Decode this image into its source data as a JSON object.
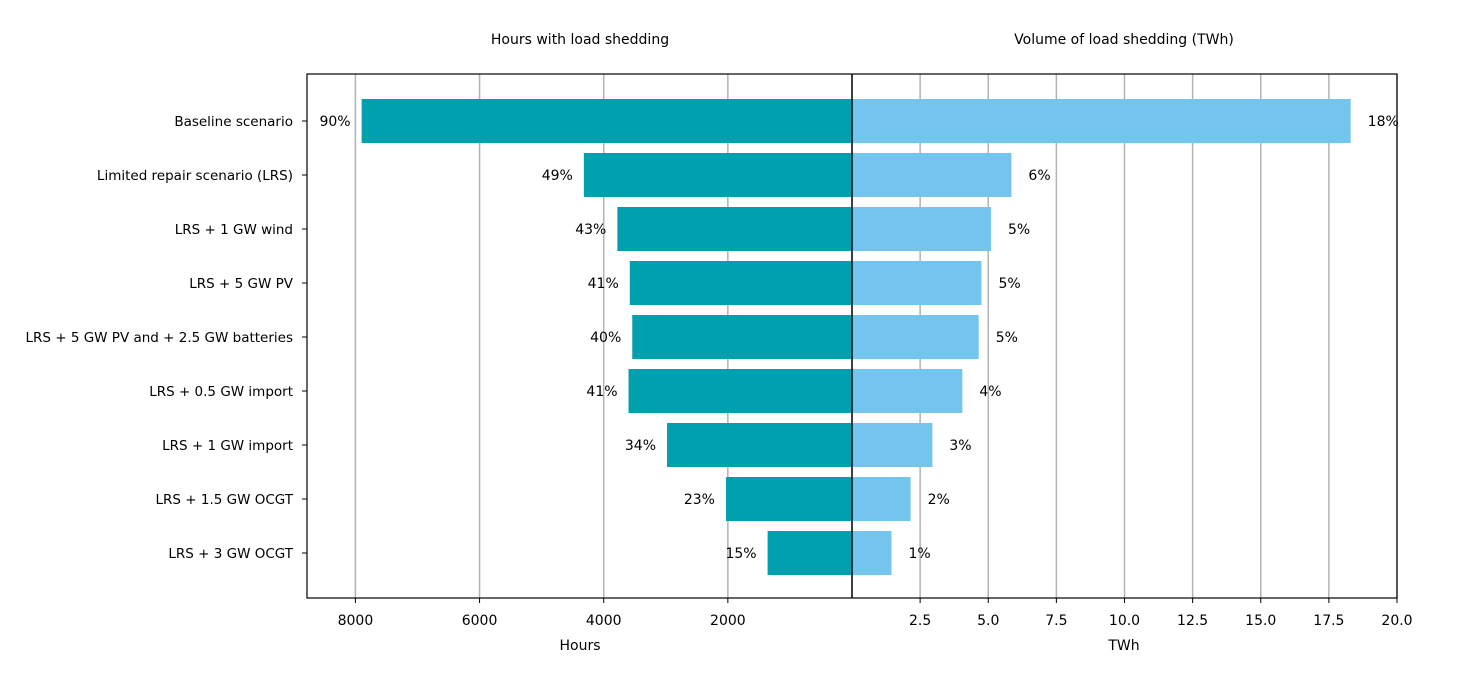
{
  "chart_data": [
    {
      "type": "bar",
      "orientation": "horizontal",
      "direction": "reversed",
      "title": "Hours with load shedding",
      "xlabel": "Hours",
      "xlim": [
        8780,
        0
      ],
      "xticks": [
        8000,
        6000,
        4000,
        2000
      ],
      "grid": "vertical",
      "color": "#00a0ae",
      "categories": [
        "Baseline scenario",
        "Limited repair scenario (LRS)",
        "LRS + 1 GW wind",
        "LRS + 5 GW PV",
        "LRS + 5 GW PV and + 2.5 GW batteries",
        "LRS + 0.5 GW import ",
        "LRS + 1 GW import ",
        "LRS + 1.5 GW OCGT",
        "LRS + 3 GW OCGT"
      ],
      "values": [
        7900,
        4320,
        3780,
        3580,
        3540,
        3600,
        2980,
        2030,
        1360
      ],
      "data_labels": [
        "90%",
        "49%",
        "43%",
        "41%",
        "40%",
        "41%",
        "34%",
        "23%",
        "15%"
      ]
    },
    {
      "type": "bar",
      "orientation": "horizontal",
      "title": "Volume of load shedding (TWh)",
      "xlabel": "TWh",
      "xlim": [
        0,
        20
      ],
      "xticks": [
        "2.5",
        "5.0",
        "7.5",
        "10.0",
        "12.5",
        "15.0",
        "17.5",
        "20.0"
      ],
      "grid": "vertical",
      "color": "#73c5ee",
      "categories": [
        "Baseline scenario",
        "Limited repair scenario (LRS)",
        "LRS + 1 GW wind",
        "LRS + 5 GW PV",
        "LRS + 5 GW PV and + 2.5 GW batteries",
        "LRS + 0.5 GW import ",
        "LRS + 1 GW import ",
        "LRS + 1.5 GW OCGT",
        "LRS + 3 GW OCGT"
      ],
      "values": [
        18.3,
        5.85,
        5.1,
        4.75,
        4.65,
        4.05,
        2.95,
        2.15,
        1.45
      ],
      "data_labels": [
        "18%",
        "6%",
        "5%",
        "5%",
        "5%",
        "4%",
        "3%",
        "2%",
        "1%"
      ]
    }
  ]
}
